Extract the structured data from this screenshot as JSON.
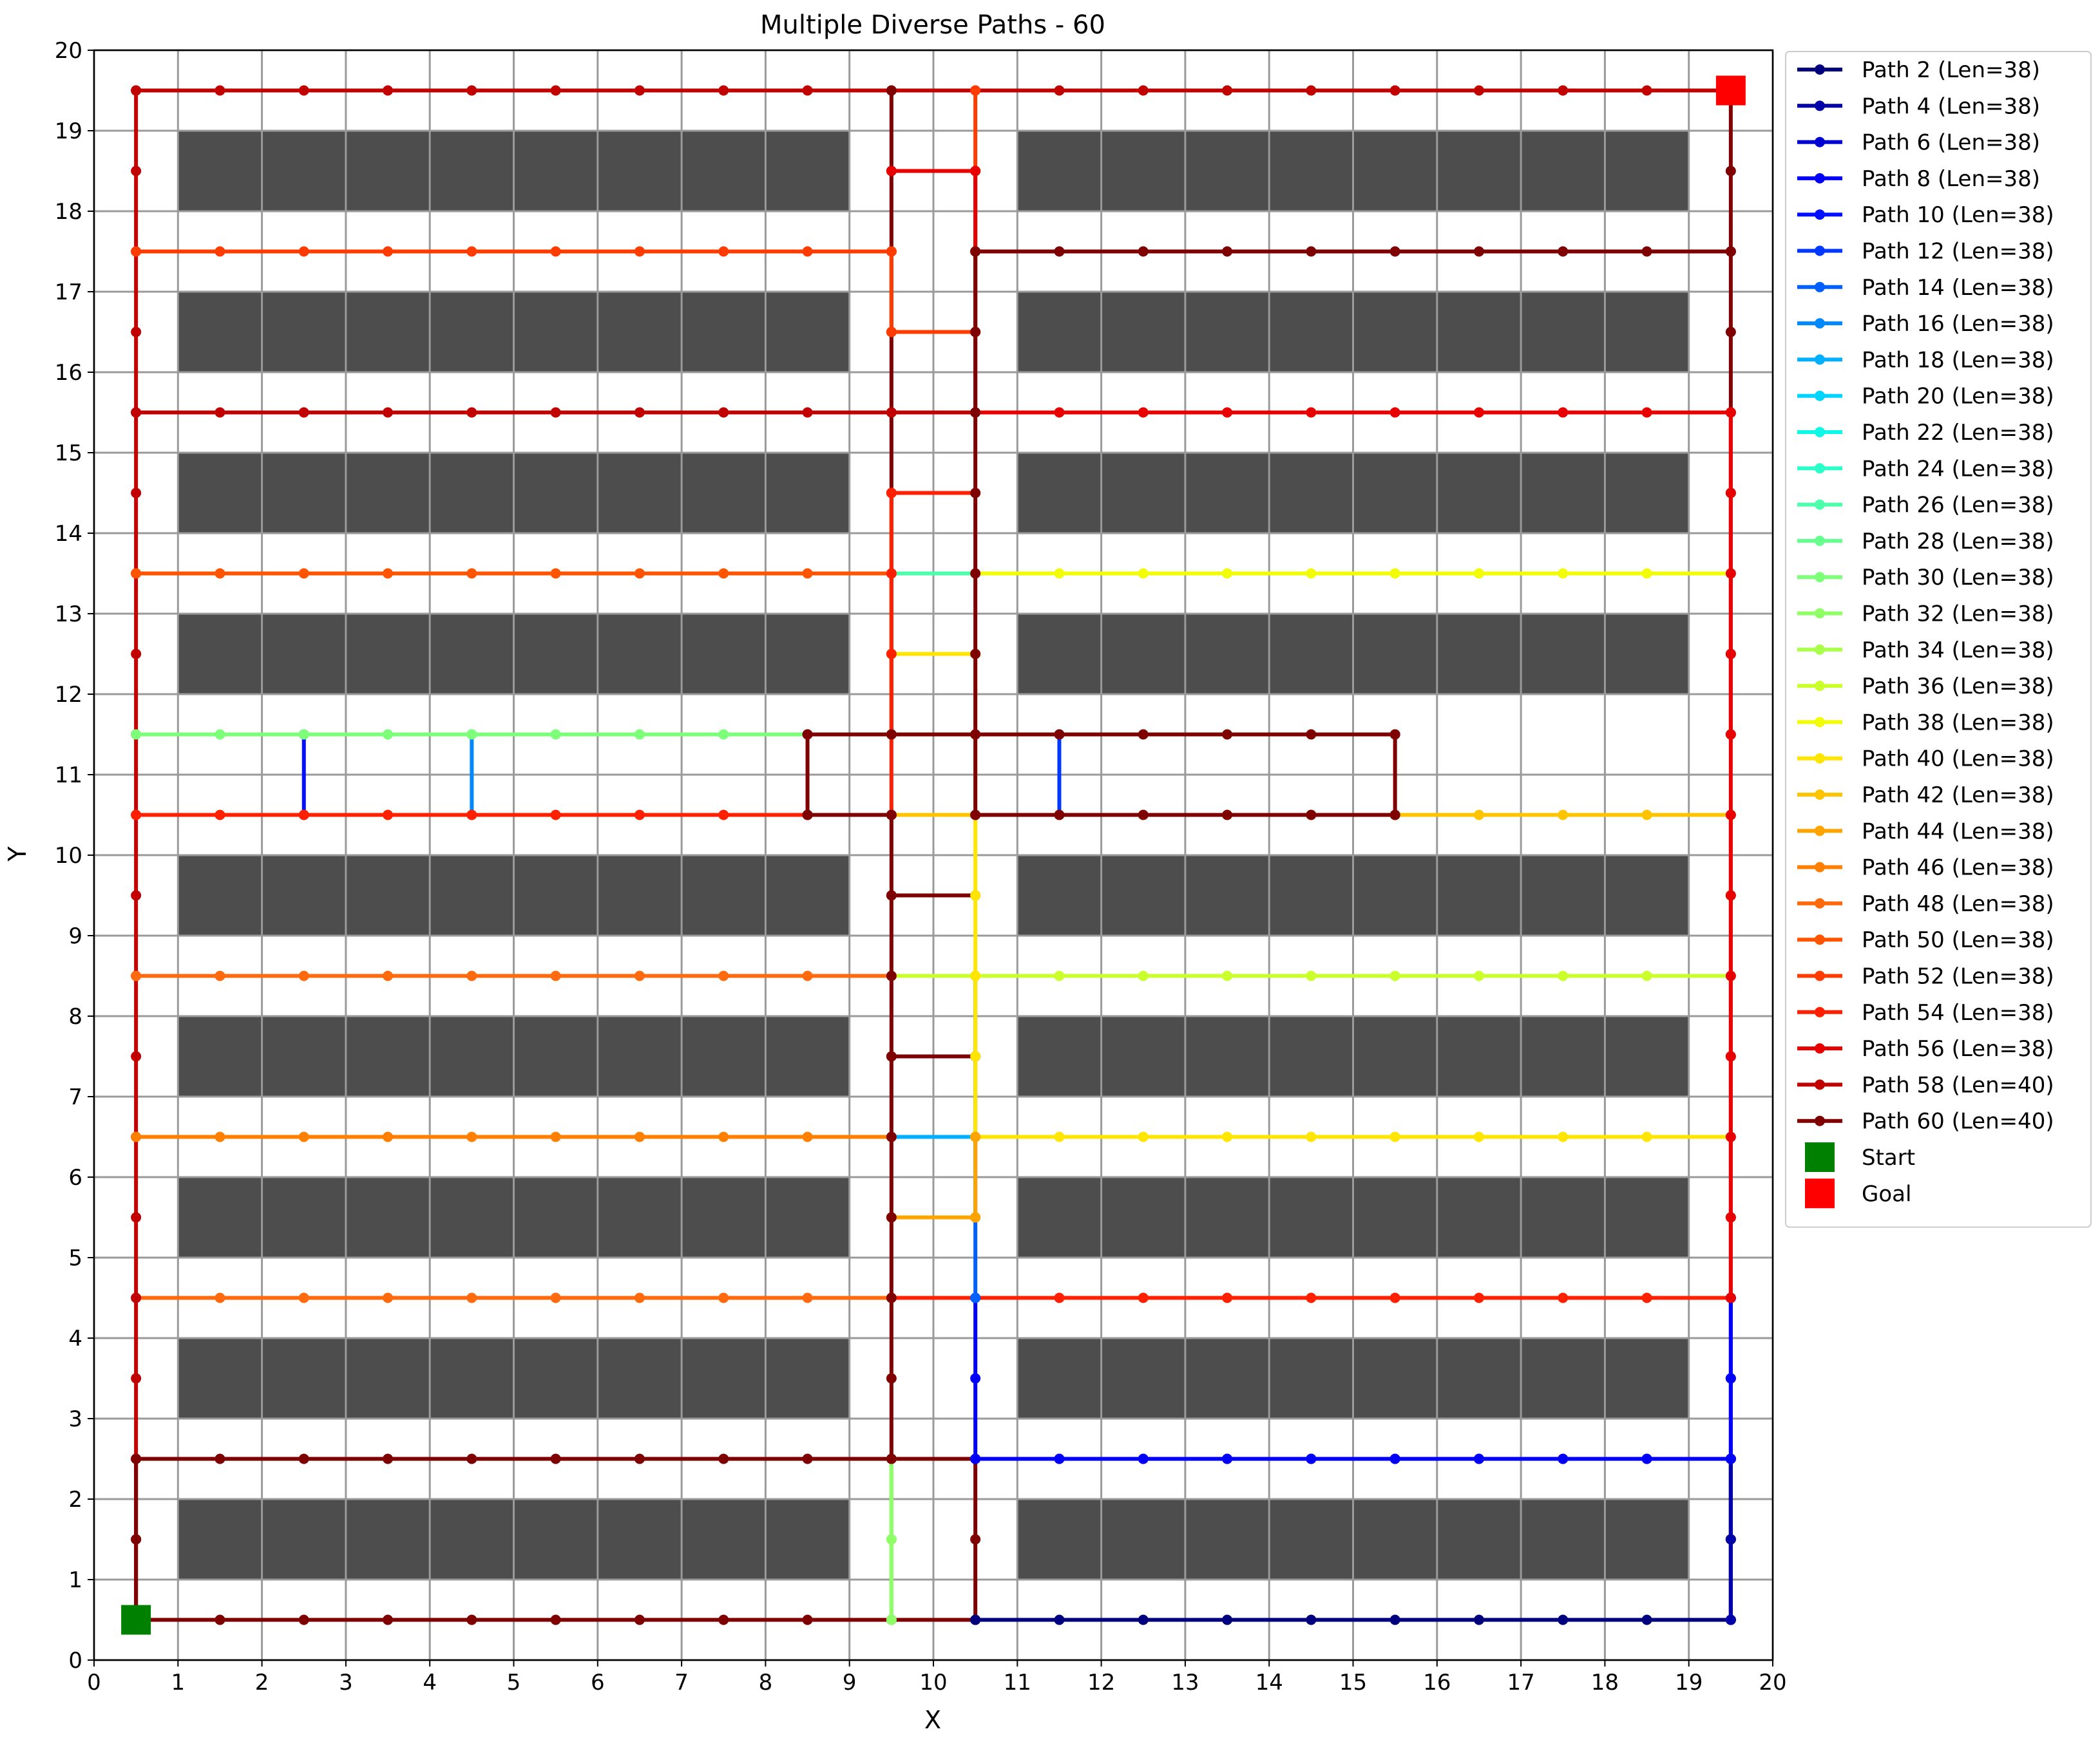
{
  "chart_data": {
    "type": "line",
    "title": "Multiple Diverse Paths - 60",
    "xlabel": "X",
    "ylabel": "Y",
    "xlim": [
      0,
      20
    ],
    "ylim": [
      0,
      20
    ],
    "xticks": [
      0,
      1,
      2,
      3,
      4,
      5,
      6,
      7,
      8,
      9,
      10,
      11,
      12,
      13,
      14,
      15,
      16,
      17,
      18,
      19,
      20
    ],
    "yticks": [
      0,
      1,
      2,
      3,
      4,
      5,
      6,
      7,
      8,
      9,
      10,
      11,
      12,
      13,
      14,
      15,
      16,
      17,
      18,
      19,
      20
    ],
    "grid": true,
    "legend_position": "outside-right",
    "obstacle_color": "#4d4d4d",
    "obstacle_rows": [
      {
        "x": [
          1,
          9
        ],
        "y": [
          1,
          2
        ]
      },
      {
        "x": [
          11,
          19
        ],
        "y": [
          1,
          2
        ]
      },
      {
        "x": [
          1,
          9
        ],
        "y": [
          3,
          4
        ]
      },
      {
        "x": [
          11,
          19
        ],
        "y": [
          3,
          4
        ]
      },
      {
        "x": [
          1,
          9
        ],
        "y": [
          5,
          6
        ]
      },
      {
        "x": [
          11,
          19
        ],
        "y": [
          5,
          6
        ]
      },
      {
        "x": [
          1,
          9
        ],
        "y": [
          7,
          8
        ]
      },
      {
        "x": [
          11,
          19
        ],
        "y": [
          7,
          8
        ]
      },
      {
        "x": [
          1,
          9
        ],
        "y": [
          9,
          10
        ]
      },
      {
        "x": [
          11,
          19
        ],
        "y": [
          9,
          10
        ]
      },
      {
        "x": [
          1,
          9
        ],
        "y": [
          12,
          13
        ]
      },
      {
        "x": [
          11,
          19
        ],
        "y": [
          12,
          13
        ]
      },
      {
        "x": [
          1,
          9
        ],
        "y": [
          14,
          15
        ]
      },
      {
        "x": [
          11,
          19
        ],
        "y": [
          14,
          15
        ]
      },
      {
        "x": [
          1,
          9
        ],
        "y": [
          16,
          17
        ]
      },
      {
        "x": [
          11,
          19
        ],
        "y": [
          16,
          17
        ]
      },
      {
        "x": [
          1,
          9
        ],
        "y": [
          18,
          19
        ]
      },
      {
        "x": [
          11,
          19
        ],
        "y": [
          18,
          19
        ]
      }
    ],
    "series": [
      {
        "name": "Path 2 (Len=38)",
        "color": "#00007f",
        "points": [
          [
            10.5,
            0.5
          ],
          [
            19.5,
            0.5
          ],
          [
            19.5,
            2.5
          ]
        ]
      },
      {
        "name": "Path 4 (Len=38)",
        "color": "#0000a8",
        "points": [
          [
            19.5,
            0.5
          ],
          [
            19.5,
            2.5
          ]
        ]
      },
      {
        "name": "Path 6 (Len=38)",
        "color": "#0000d1",
        "points": [
          [
            10.5,
            2.5
          ],
          [
            19.5,
            2.5
          ],
          [
            19.5,
            4.5
          ]
        ]
      },
      {
        "name": "Path 8 (Len=38)",
        "color": "#0000fa",
        "points": [
          [
            10.5,
            4.5
          ],
          [
            10.5,
            2.5
          ],
          [
            19.5,
            2.5
          ],
          [
            19.5,
            4.5
          ]
        ]
      },
      {
        "name": "Path 10 (Len=38)",
        "color": "#0010ff",
        "points": [
          [
            2.5,
            10.5
          ],
          [
            2.5,
            11.5
          ]
        ]
      },
      {
        "name": "Path 12 (Len=38)",
        "color": "#0038ff",
        "points": [
          [
            11.5,
            10.5
          ],
          [
            11.5,
            11.5
          ]
        ]
      },
      {
        "name": "Path 14 (Len=38)",
        "color": "#0060ff",
        "points": [
          [
            10.5,
            4.5
          ],
          [
            10.5,
            8.5
          ]
        ]
      },
      {
        "name": "Path 16 (Len=38)",
        "color": "#0088ff",
        "points": [
          [
            4.5,
            10.5
          ],
          [
            4.5,
            11.5
          ]
        ]
      },
      {
        "name": "Path 18 (Len=38)",
        "color": "#00b0ff",
        "points": [
          [
            9.5,
            6.5
          ],
          [
            10.5,
            6.5
          ]
        ]
      },
      {
        "name": "Path 20 (Len=38)",
        "color": "#00d4ff",
        "points": [
          [
            10.5,
            15.5
          ],
          [
            10.5,
            18.5
          ]
        ]
      },
      {
        "name": "Path 22 (Len=38)",
        "color": "#0ff8e7",
        "points": [
          [
            9.5,
            13.5
          ],
          [
            10.5,
            13.5
          ]
        ]
      },
      {
        "name": "Path 24 (Len=38)",
        "color": "#2bffca",
        "points": [
          [
            9.5,
            13.5
          ],
          [
            10.5,
            13.5
          ]
        ]
      },
      {
        "name": "Path 26 (Len=38)",
        "color": "#4dffaa",
        "points": [
          [
            9.5,
            13.5
          ],
          [
            10.5,
            13.5
          ]
        ]
      },
      {
        "name": "Path 28 (Len=38)",
        "color": "#67ff90",
        "points": [
          [
            9.5,
            2.5
          ],
          [
            9.5,
            0.5
          ]
        ]
      },
      {
        "name": "Path 30 (Len=38)",
        "color": "#7dff7a",
        "points": [
          [
            0.5,
            11.5
          ],
          [
            8.5,
            11.5
          ]
        ]
      },
      {
        "name": "Path 32 (Len=38)",
        "color": "#90ff67",
        "points": [
          [
            9.5,
            2.5
          ],
          [
            9.5,
            1.5
          ],
          [
            9.5,
            0.5
          ]
        ]
      },
      {
        "name": "Path 34 (Len=38)",
        "color": "#aaff4d",
        "points": [
          [
            9.5,
            8.5
          ],
          [
            10.5,
            8.5
          ]
        ]
      },
      {
        "name": "Path 36 (Len=38)",
        "color": "#caff2b",
        "points": [
          [
            9.5,
            8.5
          ],
          [
            19.5,
            8.5
          ]
        ]
      },
      {
        "name": "Path 38 (Len=38)",
        "color": "#f1fc06",
        "points": [
          [
            10.5,
            13.5
          ],
          [
            19.5,
            13.5
          ]
        ]
      },
      {
        "name": "Path 40 (Len=38)",
        "color": "#ffe500",
        "points": [
          [
            9.5,
            12.5
          ],
          [
            10.5,
            12.5
          ],
          [
            10.5,
            6.5
          ],
          [
            19.5,
            6.5
          ]
        ]
      },
      {
        "name": "Path 42 (Len=38)",
        "color": "#ffc400",
        "points": [
          [
            9.5,
            10.5
          ],
          [
            10.5,
            10.5
          ],
          [
            15.5,
            10.5
          ],
          [
            19.5,
            10.5
          ]
        ]
      },
      {
        "name": "Path 44 (Len=38)",
        "color": "#ffa300",
        "points": [
          [
            9.5,
            5.5
          ],
          [
            10.5,
            5.5
          ],
          [
            10.5,
            6.5
          ]
        ]
      },
      {
        "name": "Path 46 (Len=38)",
        "color": "#ff8000",
        "points": [
          [
            0.5,
            6.5
          ],
          [
            9.5,
            6.5
          ]
        ]
      },
      {
        "name": "Path 48 (Len=38)",
        "color": "#ff6a0f",
        "points": [
          [
            0.5,
            8.5
          ],
          [
            9.5,
            8.5
          ]
        ]
      },
      {
        "name": "Path 50 (Len=38)",
        "color": "#ff5400",
        "points": [
          [
            0.5,
            13.5
          ],
          [
            9.5,
            13.5
          ]
        ]
      },
      {
        "name": "Path 52 (Len=38)",
        "color": "#ff3c00",
        "points": [
          [
            0.5,
            17.5
          ],
          [
            9.5,
            17.5
          ],
          [
            9.5,
            16.5
          ],
          [
            10.5,
            16.5
          ],
          [
            10.5,
            19.5
          ]
        ]
      },
      {
        "name": "Path 54 (Len=38)",
        "color": "#ff2000",
        "points": [
          [
            0.5,
            10.5
          ],
          [
            9.5,
            10.5
          ],
          [
            9.5,
            14.5
          ],
          [
            10.5,
            14.5
          ]
        ]
      },
      {
        "name": "Path 56 (Len=38)",
        "color": "#e80000",
        "points": [
          [
            9.5,
            18.5
          ],
          [
            10.5,
            18.5
          ],
          [
            10.5,
            15.5
          ],
          [
            19.5,
            15.5
          ],
          [
            19.5,
            4.5
          ]
        ]
      },
      {
        "name": "Path 58 (Len=40)",
        "color": "#c10000",
        "points": [
          [
            0.5,
            15.5
          ],
          [
            10.5,
            15.5
          ]
        ]
      },
      {
        "name": "Path 60 (Len=40)",
        "color": "#7f0000",
        "points": [
          [
            0.5,
            0.5
          ],
          [
            0.5,
            2.5
          ],
          [
            9.5,
            2.5
          ],
          [
            9.5,
            10.5
          ],
          [
            8.5,
            10.5
          ],
          [
            8.5,
            11.5
          ],
          [
            15.5,
            11.5
          ],
          [
            15.5,
            10.5
          ],
          [
            10.5,
            10.5
          ],
          [
            10.5,
            17.5
          ],
          [
            19.5,
            17.5
          ],
          [
            19.5,
            19.5
          ]
        ]
      }
    ],
    "extra_segments": [
      {
        "color": "#ff2000",
        "points": [
          [
            9.5,
            4.5
          ],
          [
            19.5,
            4.5
          ],
          [
            19.5,
            10.5
          ]
        ]
      },
      {
        "color": "#ff6a0f",
        "points": [
          [
            0.5,
            4.5
          ],
          [
            9.5,
            4.5
          ]
        ]
      },
      {
        "color": "#c10000",
        "points": [
          [
            0.5,
            0.5
          ],
          [
            0.5,
            19.5
          ],
          [
            19.5,
            19.5
          ]
        ]
      },
      {
        "color": "#c10000",
        "points": [
          [
            9.5,
            0.5
          ],
          [
            10.5,
            0.5
          ]
        ]
      },
      {
        "color": "#7f0000",
        "points": [
          [
            0.5,
            0.5
          ],
          [
            10.5,
            0.5
          ],
          [
            10.5,
            2.5
          ]
        ]
      },
      {
        "color": "#7f0000",
        "points": [
          [
            9.5,
            19.5
          ],
          [
            9.5,
            11.5
          ]
        ]
      },
      {
        "color": "#7f0000",
        "points": [
          [
            9.5,
            9.5
          ],
          [
            10.5,
            9.5
          ]
        ]
      },
      {
        "color": "#7f0000",
        "points": [
          [
            9.5,
            7.5
          ],
          [
            10.5,
            7.5
          ]
        ]
      },
      {
        "color": "#7f0000",
        "points": [
          [
            9.5,
            2.5
          ],
          [
            10.5,
            2.5
          ]
        ]
      },
      {
        "color": "#7f0000",
        "points": [
          [
            19.5,
            17.5
          ],
          [
            19.5,
            11.5
          ]
        ]
      },
      {
        "color": "#7f0000",
        "points": [
          [
            19.5,
            2.5
          ],
          [
            19.5,
            0.5
          ]
        ]
      }
    ],
    "start": {
      "label": "Start",
      "x": 0.5,
      "y": 0.5,
      "color": "#008000"
    },
    "goal": {
      "label": "Goal",
      "x": 19.5,
      "y": 19.5,
      "color": "#ff0000"
    }
  }
}
